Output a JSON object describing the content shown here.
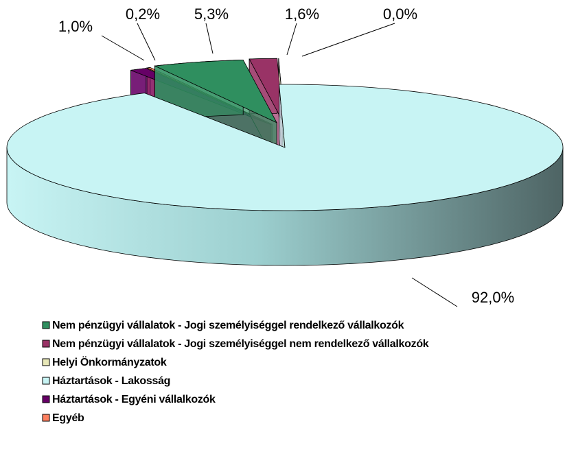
{
  "chart_data": {
    "type": "pie3d",
    "series": [
      {
        "name": "Nem pénzügyi vállalatok - Jogi személyiséggel rendelkező vállalkozók",
        "color": "#2f8f5f",
        "values": [
          5.3
        ],
        "value_labels": [
          "5,3%"
        ]
      },
      {
        "name": "Nem pénzügyi vállalatok - Jogi személyiséggel nem rendelkező vállalkozók",
        "color": "#993366",
        "values": [
          1.6
        ],
        "value_labels": [
          "1,6%"
        ]
      },
      {
        "name": "Helyi Önkormányzatok",
        "color": "#e8e8b8",
        "values": [
          0.0
        ],
        "value_labels": [
          "0,0%"
        ]
      },
      {
        "name": "Háztartások - Lakosság",
        "color": "#c8f4f4",
        "values": [
          92.0
        ],
        "value_labels": [
          "92,0%"
        ]
      },
      {
        "name": "Háztartások - Egyéni vállalkozók",
        "color": "#660066",
        "values": [
          1.0
        ],
        "value_labels": [
          "1,0%"
        ]
      },
      {
        "name": "Egyéb",
        "color": "#ff8060",
        "values": [
          0.2
        ],
        "value_labels": [
          "0,2%"
        ]
      }
    ]
  }
}
